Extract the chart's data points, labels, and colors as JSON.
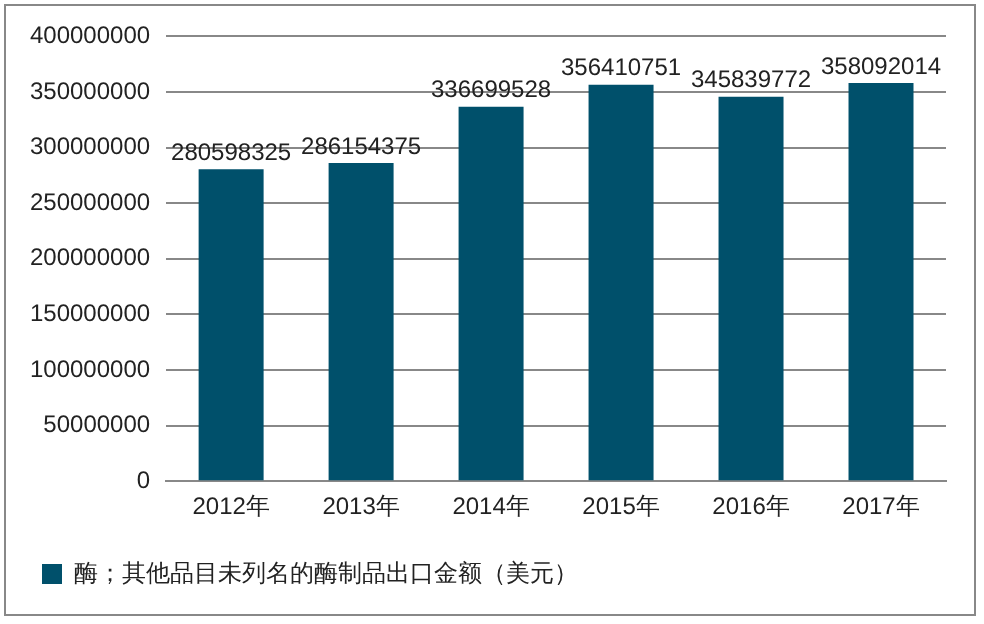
{
  "chart_data": {
    "type": "bar",
    "categories": [
      "2012年",
      "2013年",
      "2014年",
      "2015年",
      "2016年",
      "2017年"
    ],
    "series": [
      {
        "name": "酶；其他品目未列名的酶制品出口金额（美元）",
        "color": "#00506b",
        "values": [
          280598325,
          286154375,
          336699528,
          356410751,
          345839772,
          358092014
        ]
      }
    ],
    "ylim": [
      0,
      400000000
    ],
    "yticks": [
      0,
      50000000,
      100000000,
      150000000,
      200000000,
      250000000,
      300000000,
      350000000,
      400000000
    ],
    "grid": "y",
    "legend": "bottom",
    "data_labels": true
  }
}
